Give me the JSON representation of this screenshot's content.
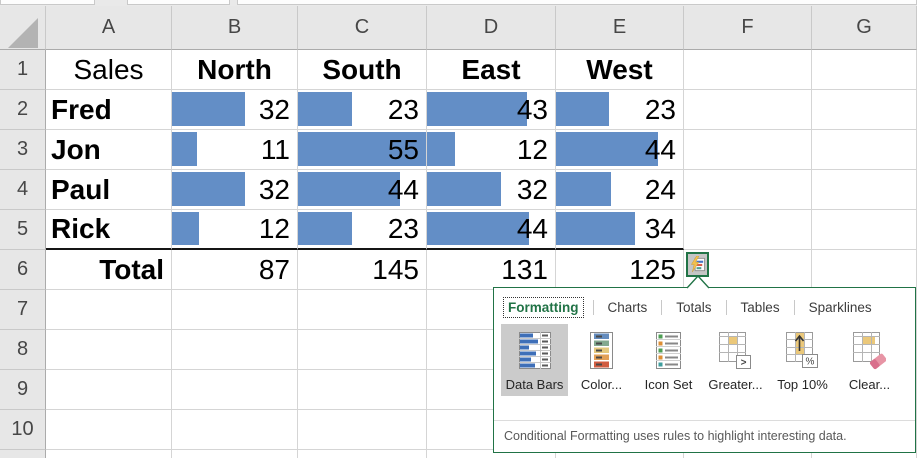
{
  "columns": [
    "A",
    "B",
    "C",
    "D",
    "E",
    "F",
    "G"
  ],
  "row_numbers": [
    "1",
    "2",
    "3",
    "4",
    "5",
    "6",
    "7",
    "8",
    "9",
    "10"
  ],
  "table": {
    "title_cell": "Sales",
    "headers": [
      "North",
      "South",
      "East",
      "West"
    ],
    "bar_max": 55,
    "rows": [
      {
        "name": "Fred",
        "values": [
          32,
          23,
          43,
          23
        ]
      },
      {
        "name": "Jon",
        "values": [
          11,
          55,
          12,
          44
        ]
      },
      {
        "name": "Paul",
        "values": [
          32,
          44,
          32,
          24
        ]
      },
      {
        "name": "Rick",
        "values": [
          12,
          23,
          44,
          34
        ]
      }
    ],
    "total": {
      "label": "Total",
      "values": [
        87,
        145,
        131,
        125
      ]
    }
  },
  "colors": {
    "data_bar": "#638EC6",
    "excel_green": "#217346",
    "thick_border": "#151515"
  },
  "quick_analysis": {
    "tabs": [
      {
        "label": "Formatting",
        "active": true
      },
      {
        "label": "Charts",
        "active": false
      },
      {
        "label": "Totals",
        "active": false
      },
      {
        "label": "Tables",
        "active": false
      },
      {
        "label": "Sparklines",
        "active": false
      }
    ],
    "buttons": [
      {
        "label": "Data Bars",
        "icon": "data-bars-icon",
        "active": true
      },
      {
        "label": "Color...",
        "icon": "color-scale-icon",
        "active": false
      },
      {
        "label": "Icon Set",
        "icon": "icon-set-icon",
        "active": false
      },
      {
        "label": "Greater...",
        "icon": "greater-than-icon",
        "active": false
      },
      {
        "label": "Top 10%",
        "icon": "top-10-percent-icon",
        "active": false
      },
      {
        "label": "Clear...",
        "icon": "clear-format-icon",
        "active": false
      }
    ],
    "footer": "Conditional Formatting uses rules to highlight interesting data."
  }
}
